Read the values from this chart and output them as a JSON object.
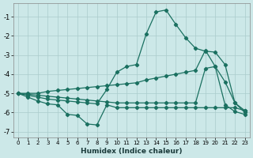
{
  "xlabel": "Humidex (Indice chaleur)",
  "background_color": "#cce8e8",
  "grid_color": "#aacccc",
  "line_color": "#1a7060",
  "xlim": [
    -0.5,
    23.5
  ],
  "ylim": [
    -7.3,
    -0.3
  ],
  "yticks": [
    -7,
    -6,
    -5,
    -4,
    -3,
    -2,
    -1
  ],
  "xticks": [
    0,
    1,
    2,
    3,
    4,
    5,
    6,
    7,
    8,
    9,
    10,
    11,
    12,
    13,
    14,
    15,
    16,
    17,
    18,
    19,
    20,
    21,
    22,
    23
  ],
  "s1_y": [
    -5.0,
    -5.2,
    -5.4,
    -5.55,
    -5.6,
    -6.1,
    -6.15,
    -6.6,
    -6.65,
    -5.6,
    -5.75,
    -5.75,
    -5.75,
    -5.75,
    -5.75,
    -5.75,
    -5.75,
    -5.75,
    -5.75,
    -5.75,
    -5.75,
    -5.75,
    -5.75,
    -5.9
  ],
  "s2_y": [
    -5.0,
    -5.1,
    -5.2,
    -5.3,
    -5.35,
    -5.4,
    -5.45,
    -5.5,
    -5.55,
    -4.8,
    -3.9,
    -3.6,
    -3.5,
    -1.9,
    -0.75,
    -0.65,
    -1.4,
    -2.1,
    -2.65,
    -2.8,
    -2.85,
    -3.5,
    -5.5,
    -6.0
  ],
  "s3_y": [
    -5.0,
    -5.0,
    -5.0,
    -4.9,
    -4.85,
    -4.8,
    -4.75,
    -4.7,
    -4.65,
    -4.6,
    -4.55,
    -4.5,
    -4.45,
    -4.3,
    -4.2,
    -4.1,
    -4.0,
    -3.9,
    -3.8,
    -2.75,
    -3.6,
    -4.4,
    -5.5,
    -5.9
  ],
  "s4_y": [
    -5.0,
    -5.05,
    -5.1,
    -5.15,
    -5.2,
    -5.25,
    -5.3,
    -5.35,
    -5.4,
    -5.45,
    -5.5,
    -5.5,
    -5.5,
    -5.5,
    -5.5,
    -5.5,
    -5.5,
    -5.5,
    -5.5,
    -3.7,
    -3.6,
    -5.6,
    -5.95,
    -6.1
  ]
}
